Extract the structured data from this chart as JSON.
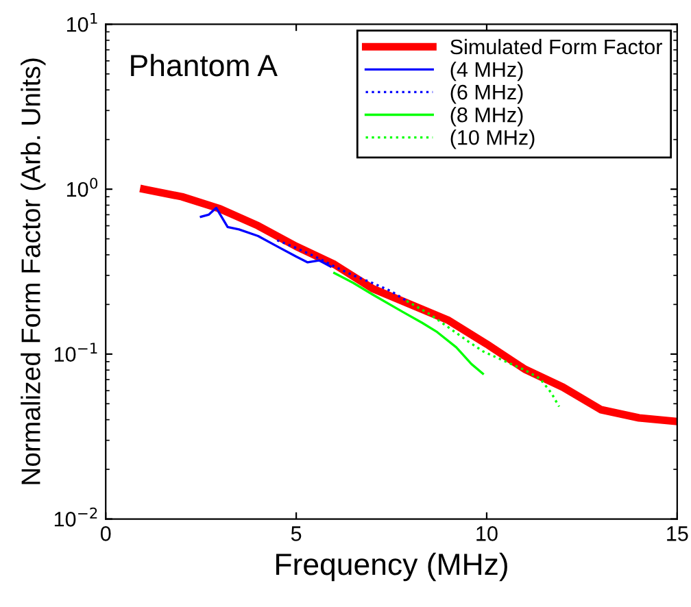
{
  "chart_data": {
    "type": "line",
    "xlabel": "Frequency (MHz)",
    "ylabel": "Normalized Form Factor (Arb. Units)",
    "annotations": [
      "Phantom A"
    ],
    "log": "y",
    "xlim": [
      0,
      15
    ],
    "xticks": [
      0,
      5,
      10,
      15
    ],
    "ylim": [
      0.01,
      10
    ],
    "yticks": [
      {
        "value": 0.01,
        "label": "10$^{−2}$"
      },
      {
        "value": 0.1,
        "label": "10$^{−1}$"
      },
      {
        "value": 1,
        "label": "10$^{0}$"
      },
      {
        "value": 10,
        "label": "10$^{1}$"
      }
    ],
    "grid": false,
    "legend": "top right",
    "series": [
      {
        "name": "Simulated Form Factor",
        "color": "#ff0000",
        "line_style": "solid",
        "x": [
          1,
          2,
          3,
          4,
          5,
          6,
          7,
          8,
          9,
          10,
          11,
          12,
          13,
          14,
          15
        ],
        "values": [
          1.0,
          0.9,
          0.76,
          0.6,
          0.45,
          0.35,
          0.25,
          0.2,
          0.16,
          0.115,
          0.081,
          0.063,
          0.046,
          0.041,
          0.039
        ]
      },
      {
        "name": "(4 MHz)",
        "color": "#0000ff",
        "line_style": "solid",
        "x": [
          2.5,
          2.7,
          2.9,
          3.2,
          3.5,
          4.0,
          4.5,
          5.0,
          5.3,
          5.6,
          5.9
        ],
        "values": [
          0.68,
          0.7,
          0.77,
          0.59,
          0.57,
          0.52,
          0.45,
          0.39,
          0.36,
          0.37,
          0.34
        ]
      },
      {
        "name": "(6 MHz)",
        "color": "#0000ff",
        "line_style": "dotted",
        "x": [
          4.5,
          5.0,
          5.5,
          6.0,
          6.5,
          7.0,
          7.5,
          7.9
        ],
        "values": [
          0.49,
          0.44,
          0.39,
          0.34,
          0.3,
          0.27,
          0.24,
          0.21
        ]
      },
      {
        "name": "(8 MHz)",
        "color": "#00ff00",
        "line_style": "solid",
        "x": [
          6.0,
          6.5,
          7.0,
          7.8,
          8.3,
          8.7,
          9.2,
          9.6,
          9.9
        ],
        "values": [
          0.31,
          0.27,
          0.23,
          0.18,
          0.155,
          0.136,
          0.11,
          0.087,
          0.076
        ]
      },
      {
        "name": "(10 MHz)",
        "color": "#00ff00",
        "line_style": "dotted",
        "x": [
          7.9,
          8.5,
          9.0,
          9.5,
          9.9,
          10.5,
          11.0,
          11.4,
          11.7,
          11.9
        ],
        "values": [
          0.21,
          0.175,
          0.145,
          0.12,
          0.104,
          0.09,
          0.08,
          0.071,
          0.058,
          0.048
        ]
      }
    ]
  }
}
